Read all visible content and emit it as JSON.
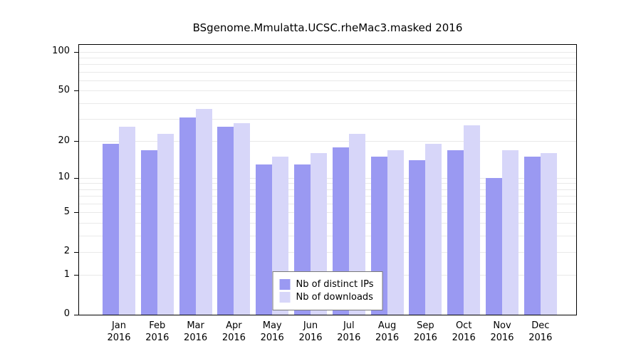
{
  "chart_data": {
    "type": "bar",
    "scale": "log1p",
    "title": "BSgenome.Mmulatta.UCSC.rheMac3.masked 2016",
    "categories": [
      "Jan",
      "Feb",
      "Mar",
      "Apr",
      "May",
      "Jun",
      "Jul",
      "Aug",
      "Sep",
      "Oct",
      "Nov",
      "Dec"
    ],
    "year": "2016",
    "y_ticks": [
      100,
      50,
      20,
      10,
      5,
      2,
      1,
      0
    ],
    "ylim": [
      0,
      100
    ],
    "grid": true,
    "legend_position": "bottom-center",
    "series": [
      {
        "name": "Nb of distinct IPs",
        "color": "#9a99f2",
        "values": [
          19,
          17,
          31,
          26,
          13,
          13,
          18,
          15,
          14,
          17,
          10,
          15
        ]
      },
      {
        "name": "Nb of downloads",
        "color": "#d7d6f9",
        "values": [
          26,
          23,
          36,
          28,
          15,
          16,
          23,
          17,
          19,
          27,
          17,
          16
        ]
      }
    ]
  },
  "colors": {
    "grid": "#e9e9e9",
    "axis": "#000000",
    "background": "#ffffff",
    "legend_border": "#7a7a7a"
  }
}
